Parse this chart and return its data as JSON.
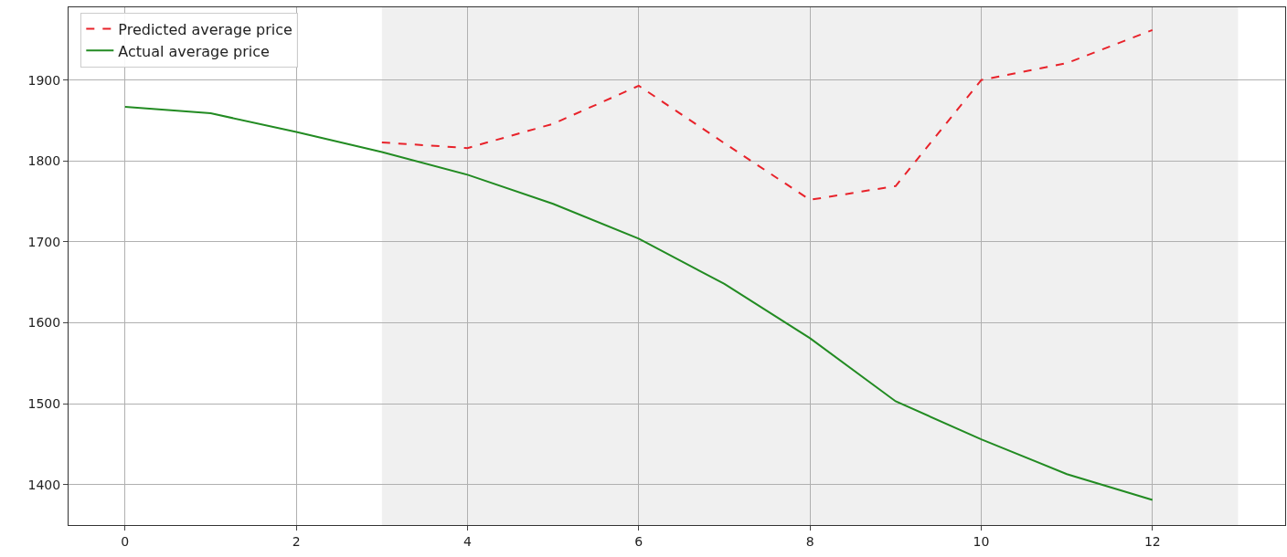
{
  "chart_data": {
    "type": "line",
    "x": [
      0,
      1,
      2,
      3,
      4,
      5,
      6,
      7,
      8,
      9,
      10,
      11,
      12
    ],
    "series": [
      {
        "name": "Predicted average price",
        "color": "#e8222a",
        "line_style": "dashed",
        "values": [
          null,
          null,
          null,
          1823,
          1816,
          1846,
          1893,
          1822,
          1752,
          1769,
          1900,
          1921,
          1962
        ]
      },
      {
        "name": "Actual average price",
        "color": "#228b22",
        "line_style": "solid",
        "values": [
          1867,
          1859,
          1836,
          1811,
          1783,
          1747,
          1704,
          1648,
          1581,
          1503,
          1456,
          1413,
          1381
        ]
      }
    ],
    "xlim": [
      -0.66,
      13.55
    ],
    "ylim": [
      1350,
      1990
    ],
    "xticks": [
      0,
      2,
      4,
      6,
      8,
      10,
      12
    ],
    "yticks": [
      1400,
      1500,
      1600,
      1700,
      1800,
      1900
    ],
    "bands": [
      {
        "axis": "x",
        "from": 3,
        "to": 13,
        "color": "#f0f0f0"
      }
    ],
    "grid": true,
    "legend": "top left",
    "marker": "none"
  }
}
